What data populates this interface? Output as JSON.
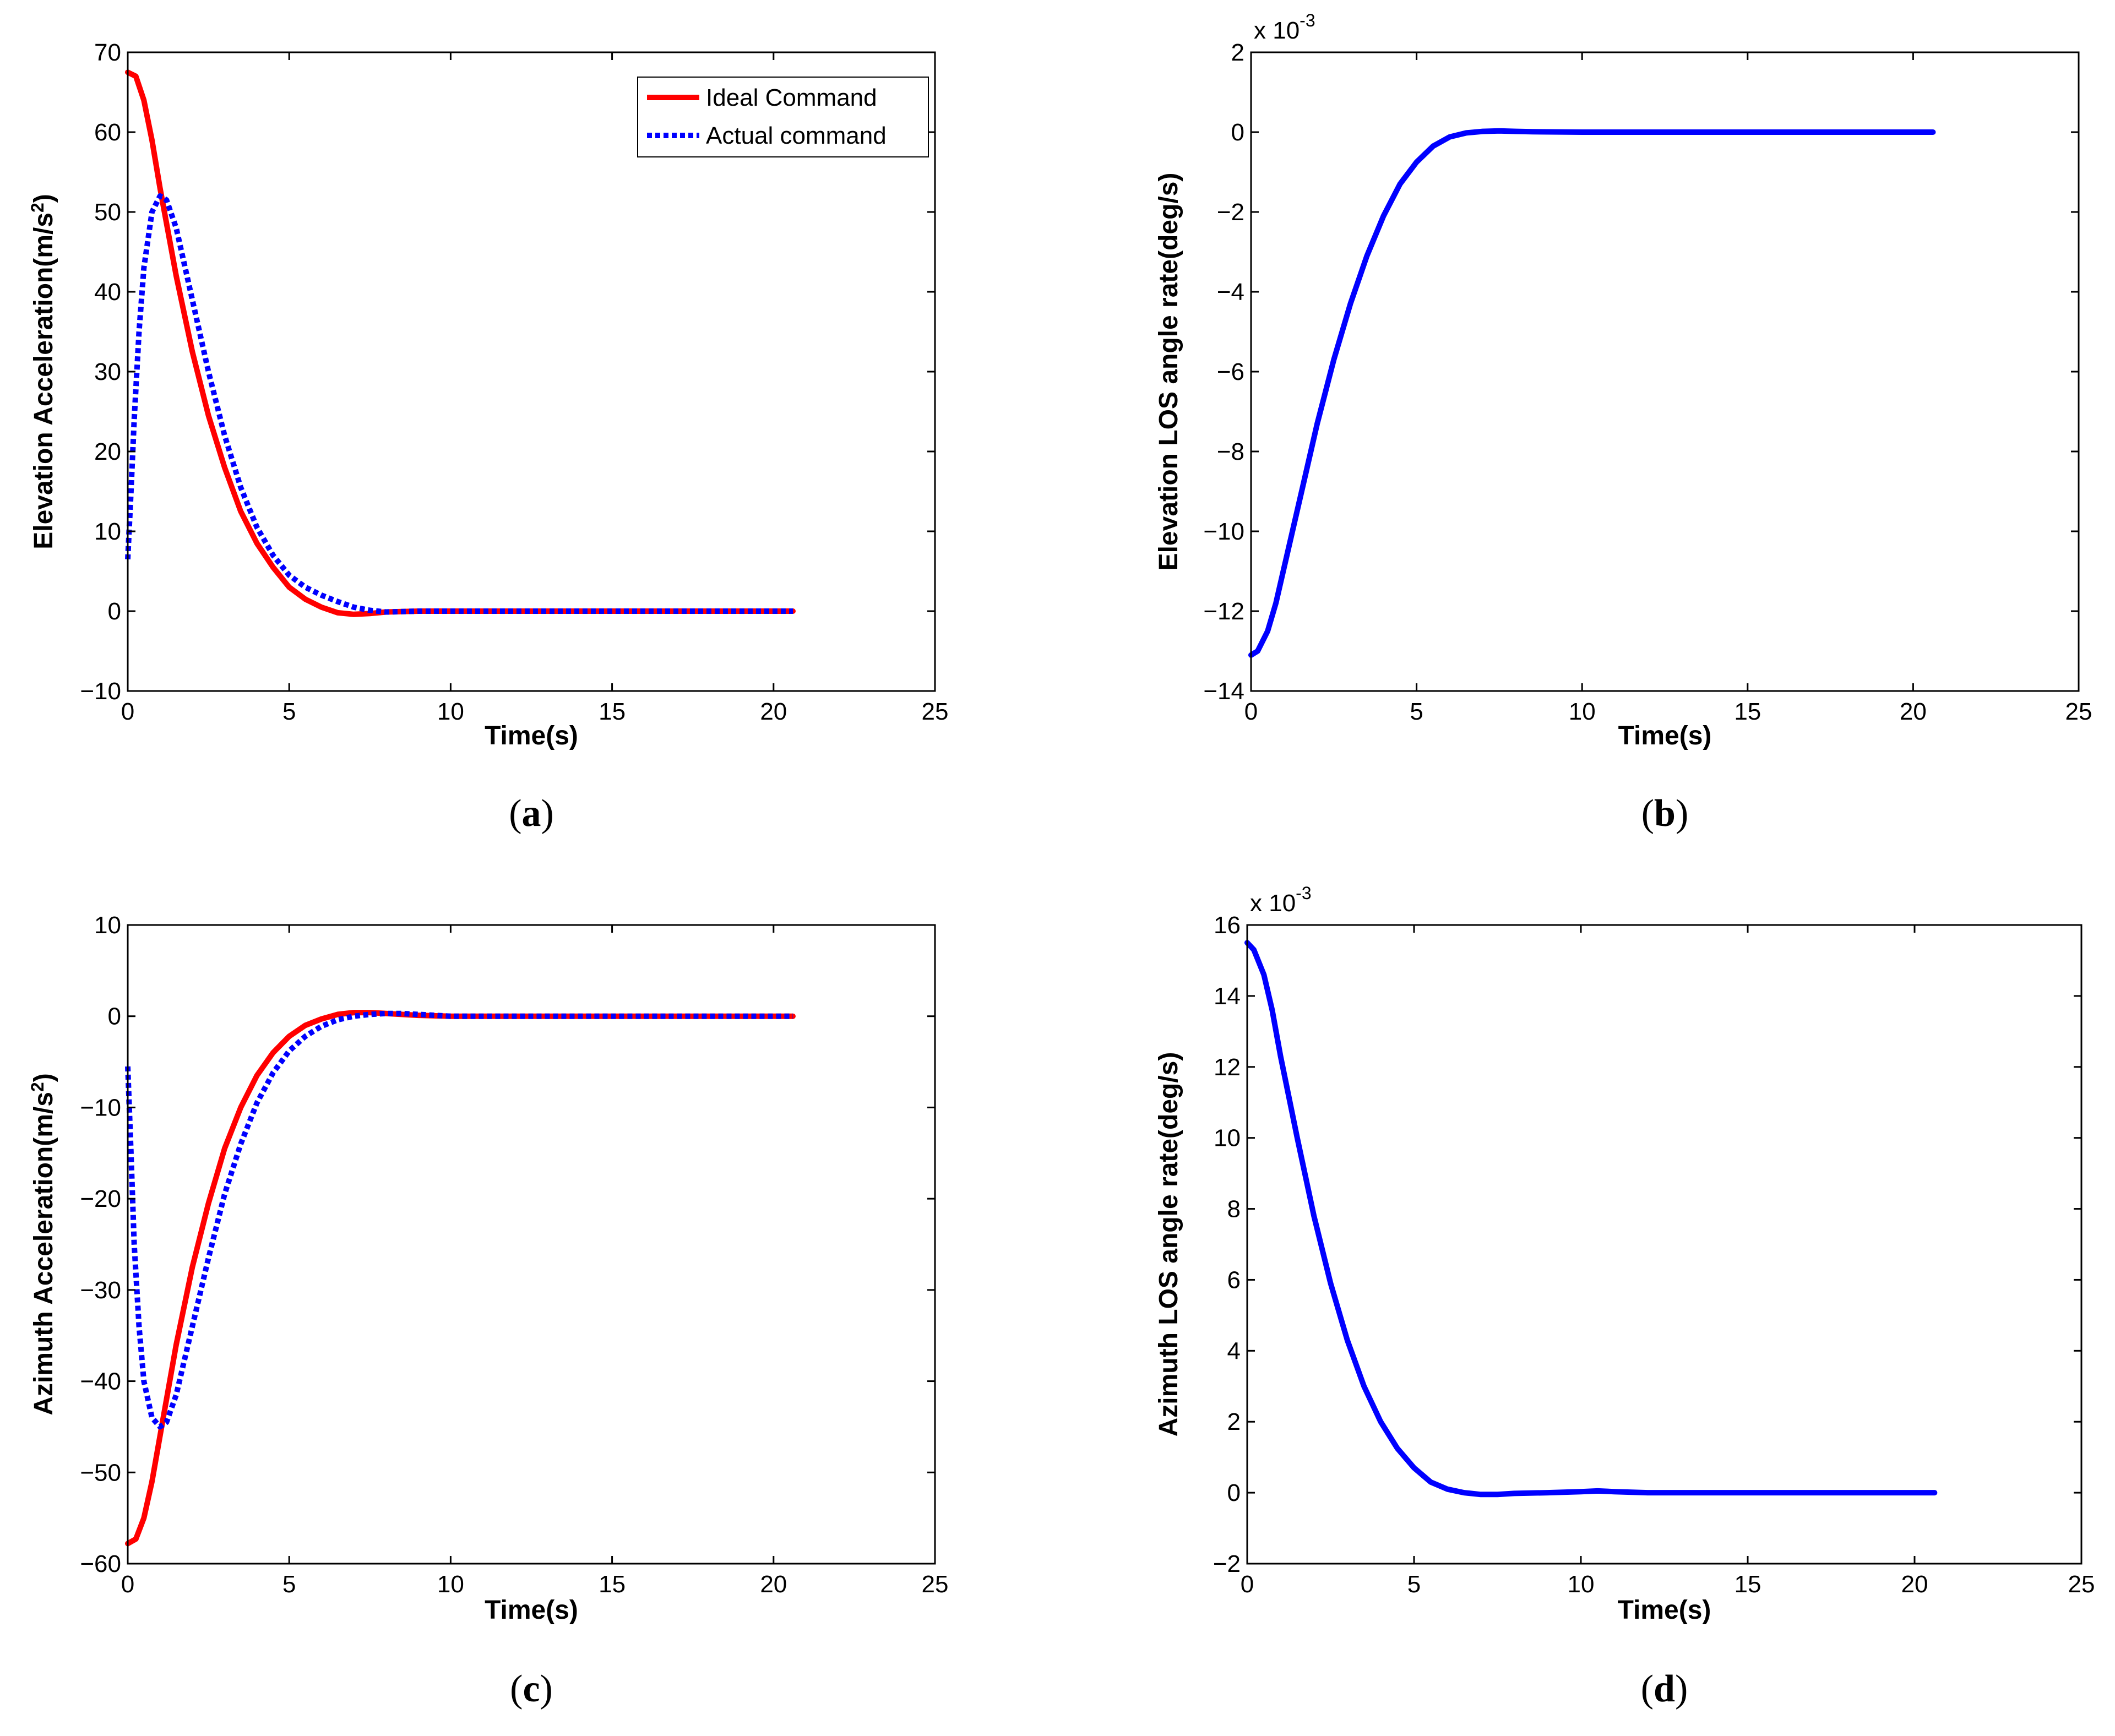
{
  "colors": {
    "ideal": "#ff0000",
    "actual": "#0000ff",
    "los": "#0000ff",
    "axis": "#000000",
    "background": "#ffffff"
  },
  "chart_data": [
    {
      "id": "a",
      "type": "line",
      "panel_label": {
        "open": "(",
        "letter": "a",
        "close": ")"
      },
      "xlabel": "Time(s)",
      "ylabel": "Elevation Acceleration(m/s",
      "ylabel_sup": "2",
      "ylabel_tail": ")",
      "xlim": [
        0,
        25
      ],
      "ylim": [
        -10,
        70
      ],
      "xticks": [
        0,
        5,
        10,
        15,
        20,
        25
      ],
      "yticks": [
        -10,
        0,
        10,
        20,
        30,
        40,
        50,
        60,
        70
      ],
      "exponent": null,
      "legend": {
        "position": "top-right"
      },
      "series": [
        {
          "name": "Ideal Command",
          "color": "#ff0000",
          "style": "solid",
          "x": [
            0,
            0.25,
            0.5,
            0.75,
            1.0,
            1.5,
            2.0,
            2.5,
            3.0,
            3.5,
            4.0,
            4.5,
            5.0,
            5.5,
            6.0,
            6.5,
            7.0,
            7.5,
            8.0,
            9.0,
            10.0,
            12.0,
            15.0,
            18.0,
            20.6
          ],
          "y": [
            67.5,
            67,
            64,
            59,
            53,
            42,
            32.5,
            24.5,
            18,
            12.5,
            8.5,
            5.5,
            3,
            1.5,
            0.5,
            -0.2,
            -0.4,
            -0.3,
            -0.1,
            0,
            0,
            0,
            0,
            0,
            0
          ]
        },
        {
          "name": "Actual command",
          "color": "#0000ff",
          "style": "dotted",
          "x": [
            0,
            0.1,
            0.2,
            0.35,
            0.5,
            0.75,
            1.0,
            1.2,
            1.5,
            2.0,
            2.5,
            3.0,
            3.5,
            4.0,
            4.5,
            5.0,
            5.5,
            6.0,
            6.5,
            7.0,
            7.5,
            8.0,
            9.0,
            10.0,
            12.0,
            15.0,
            18.0,
            20.6
          ],
          "y": [
            6.5,
            15,
            24,
            35,
            43,
            50,
            52,
            51.5,
            48,
            39,
            30,
            22,
            15.5,
            10.5,
            7,
            4.5,
            3,
            2,
            1.2,
            0.5,
            0.1,
            -0.1,
            0,
            0,
            0,
            0,
            0,
            0
          ]
        }
      ]
    },
    {
      "id": "b",
      "type": "line",
      "panel_label": {
        "open": "(",
        "letter": "b",
        "close": ")"
      },
      "xlabel": "Time(s)",
      "ylabel": "Elevation LOS angle rate(deg/s)",
      "ylabel_sup": "",
      "ylabel_tail": "",
      "xlim": [
        0,
        25
      ],
      "ylim": [
        -14,
        2
      ],
      "xticks": [
        0,
        5,
        10,
        15,
        20,
        25
      ],
      "yticks": [
        -14,
        -12,
        -10,
        -8,
        -6,
        -4,
        -2,
        0,
        2
      ],
      "exponent": {
        "base": "x 10",
        "power": "-3"
      },
      "legend": null,
      "series": [
        {
          "name": "Elevation LOS angle rate",
          "color": "#0000ff",
          "style": "solid",
          "x": [
            0,
            0.2,
            0.5,
            0.75,
            1.0,
            1.5,
            2.0,
            2.5,
            3.0,
            3.5,
            4.0,
            4.5,
            5.0,
            5.5,
            6.0,
            6.5,
            7.0,
            7.5,
            8.0,
            8.5,
            10.0,
            12.0,
            15.0,
            18.0,
            20.6
          ],
          "y": [
            -13.1,
            -13.0,
            -12.5,
            -11.8,
            -10.9,
            -9.1,
            -7.3,
            -5.7,
            -4.3,
            -3.1,
            -2.1,
            -1.3,
            -0.75,
            -0.35,
            -0.12,
            -0.02,
            0.02,
            0.03,
            0.02,
            0.01,
            0,
            0,
            0,
            0,
            0
          ]
        }
      ]
    },
    {
      "id": "c",
      "type": "line",
      "panel_label": {
        "open": "(",
        "letter": "c",
        "close": ")"
      },
      "xlabel": "Time(s)",
      "ylabel": "Azimuth Acceleration(m/s",
      "ylabel_sup": "2",
      "ylabel_tail": ")",
      "xlim": [
        0,
        25
      ],
      "ylim": [
        -60,
        10
      ],
      "xticks": [
        0,
        5,
        10,
        15,
        20,
        25
      ],
      "yticks": [
        -60,
        -50,
        -40,
        -30,
        -20,
        -10,
        0,
        10
      ],
      "exponent": null,
      "legend": null,
      "series": [
        {
          "name": "Ideal Command",
          "color": "#ff0000",
          "style": "solid",
          "x": [
            0,
            0.25,
            0.5,
            0.75,
            1.0,
            1.5,
            2.0,
            2.5,
            3.0,
            3.5,
            4.0,
            4.5,
            5.0,
            5.5,
            6.0,
            6.5,
            7.0,
            7.5,
            8.0,
            9.0,
            10.0,
            12.0,
            15.0,
            18.0,
            20.6
          ],
          "y": [
            -57.8,
            -57.3,
            -55,
            -51,
            -46,
            -36,
            -27.5,
            -20.5,
            -14.5,
            -10,
            -6.5,
            -4,
            -2.2,
            -1,
            -0.3,
            0.2,
            0.4,
            0.4,
            0.3,
            0.1,
            0,
            0,
            0,
            0,
            0
          ]
        },
        {
          "name": "Actual command",
          "color": "#0000ff",
          "style": "dotted",
          "x": [
            0,
            0.1,
            0.2,
            0.35,
            0.5,
            0.75,
            1.0,
            1.2,
            1.5,
            2.0,
            2.5,
            3.0,
            3.5,
            4.0,
            4.5,
            5.0,
            5.5,
            6.0,
            6.5,
            7.0,
            7.5,
            8.0,
            8.5,
            9.0,
            10.0,
            12.0,
            15.0,
            18.0,
            20.6
          ],
          "y": [
            -5.5,
            -15,
            -25,
            -34,
            -40,
            -44,
            -45,
            -44.5,
            -41.5,
            -34,
            -26.5,
            -19.5,
            -14,
            -9.5,
            -6.2,
            -3.8,
            -2.2,
            -1.1,
            -0.4,
            0,
            0.2,
            0.3,
            0.3,
            0.2,
            0,
            0,
            0,
            0,
            0
          ]
        }
      ]
    },
    {
      "id": "d",
      "type": "line",
      "panel_label": {
        "open": "(",
        "letter": "d",
        "close": ")"
      },
      "xlabel": "Time(s)",
      "ylabel": "Azimuth LOS angle rate(deg/s)",
      "ylabel_sup": "",
      "ylabel_tail": "",
      "xlim": [
        0,
        25
      ],
      "ylim": [
        -2,
        16
      ],
      "xticks": [
        0,
        5,
        10,
        15,
        20,
        25
      ],
      "yticks": [
        -2,
        0,
        2,
        4,
        6,
        8,
        10,
        12,
        14,
        16
      ],
      "exponent": {
        "base": "x 10",
        "power": "-3"
      },
      "legend": null,
      "series": [
        {
          "name": "Azimuth LOS angle rate",
          "color": "#0000ff",
          "style": "solid",
          "x": [
            0,
            0.2,
            0.5,
            0.75,
            1.0,
            1.5,
            2.0,
            2.5,
            3.0,
            3.5,
            4.0,
            4.5,
            5.0,
            5.5,
            6.0,
            6.5,
            7.0,
            7.5,
            8.0,
            9.0,
            10.0,
            10.5,
            11.0,
            12.0,
            15.0,
            18.0,
            20.6
          ],
          "y": [
            15.5,
            15.3,
            14.6,
            13.6,
            12.3,
            10.0,
            7.8,
            5.9,
            4.3,
            3.0,
            2.0,
            1.25,
            0.7,
            0.3,
            0.1,
            0.0,
            -0.05,
            -0.05,
            -0.02,
            0.0,
            0.03,
            0.05,
            0.03,
            0.0,
            0,
            0,
            0
          ]
        }
      ]
    }
  ]
}
